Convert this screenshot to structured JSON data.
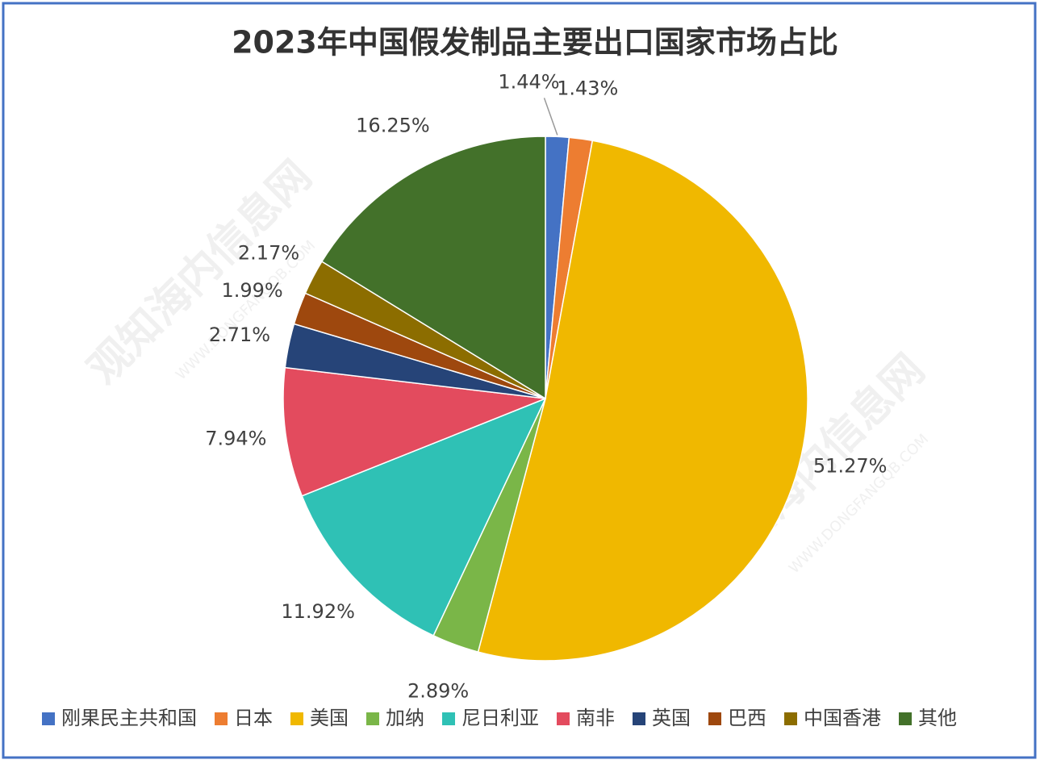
{
  "chart_data": {
    "type": "pie",
    "title": "2023年中国假发制品主要出口国家市场占比",
    "categories": [
      "刚果民主共和国",
      "日本",
      "美国",
      "加纳",
      "尼日利亚",
      "南非",
      "英国",
      "巴西",
      "中国香港",
      "其他"
    ],
    "values": [
      1.44,
      1.43,
      51.27,
      2.89,
      11.92,
      7.94,
      2.71,
      1.99,
      2.17,
      16.25
    ],
    "value_labels": [
      "1.44%",
      "1.43%",
      "51.27%",
      "2.89%",
      "11.92%",
      "7.94%",
      "2.71%",
      "1.99%",
      "2.17%",
      "16.25%"
    ],
    "colors": [
      "#4472c4",
      "#ed7d31",
      "#f0b800",
      "#7ab648",
      "#2fc1b5",
      "#e34b5e",
      "#264478",
      "#9e480e",
      "#8c6d00",
      "#43712a"
    ],
    "legend": "bottom",
    "watermark": "观知海内信息网",
    "watermark_url": "WWW.DONGFANGQB.COM"
  }
}
